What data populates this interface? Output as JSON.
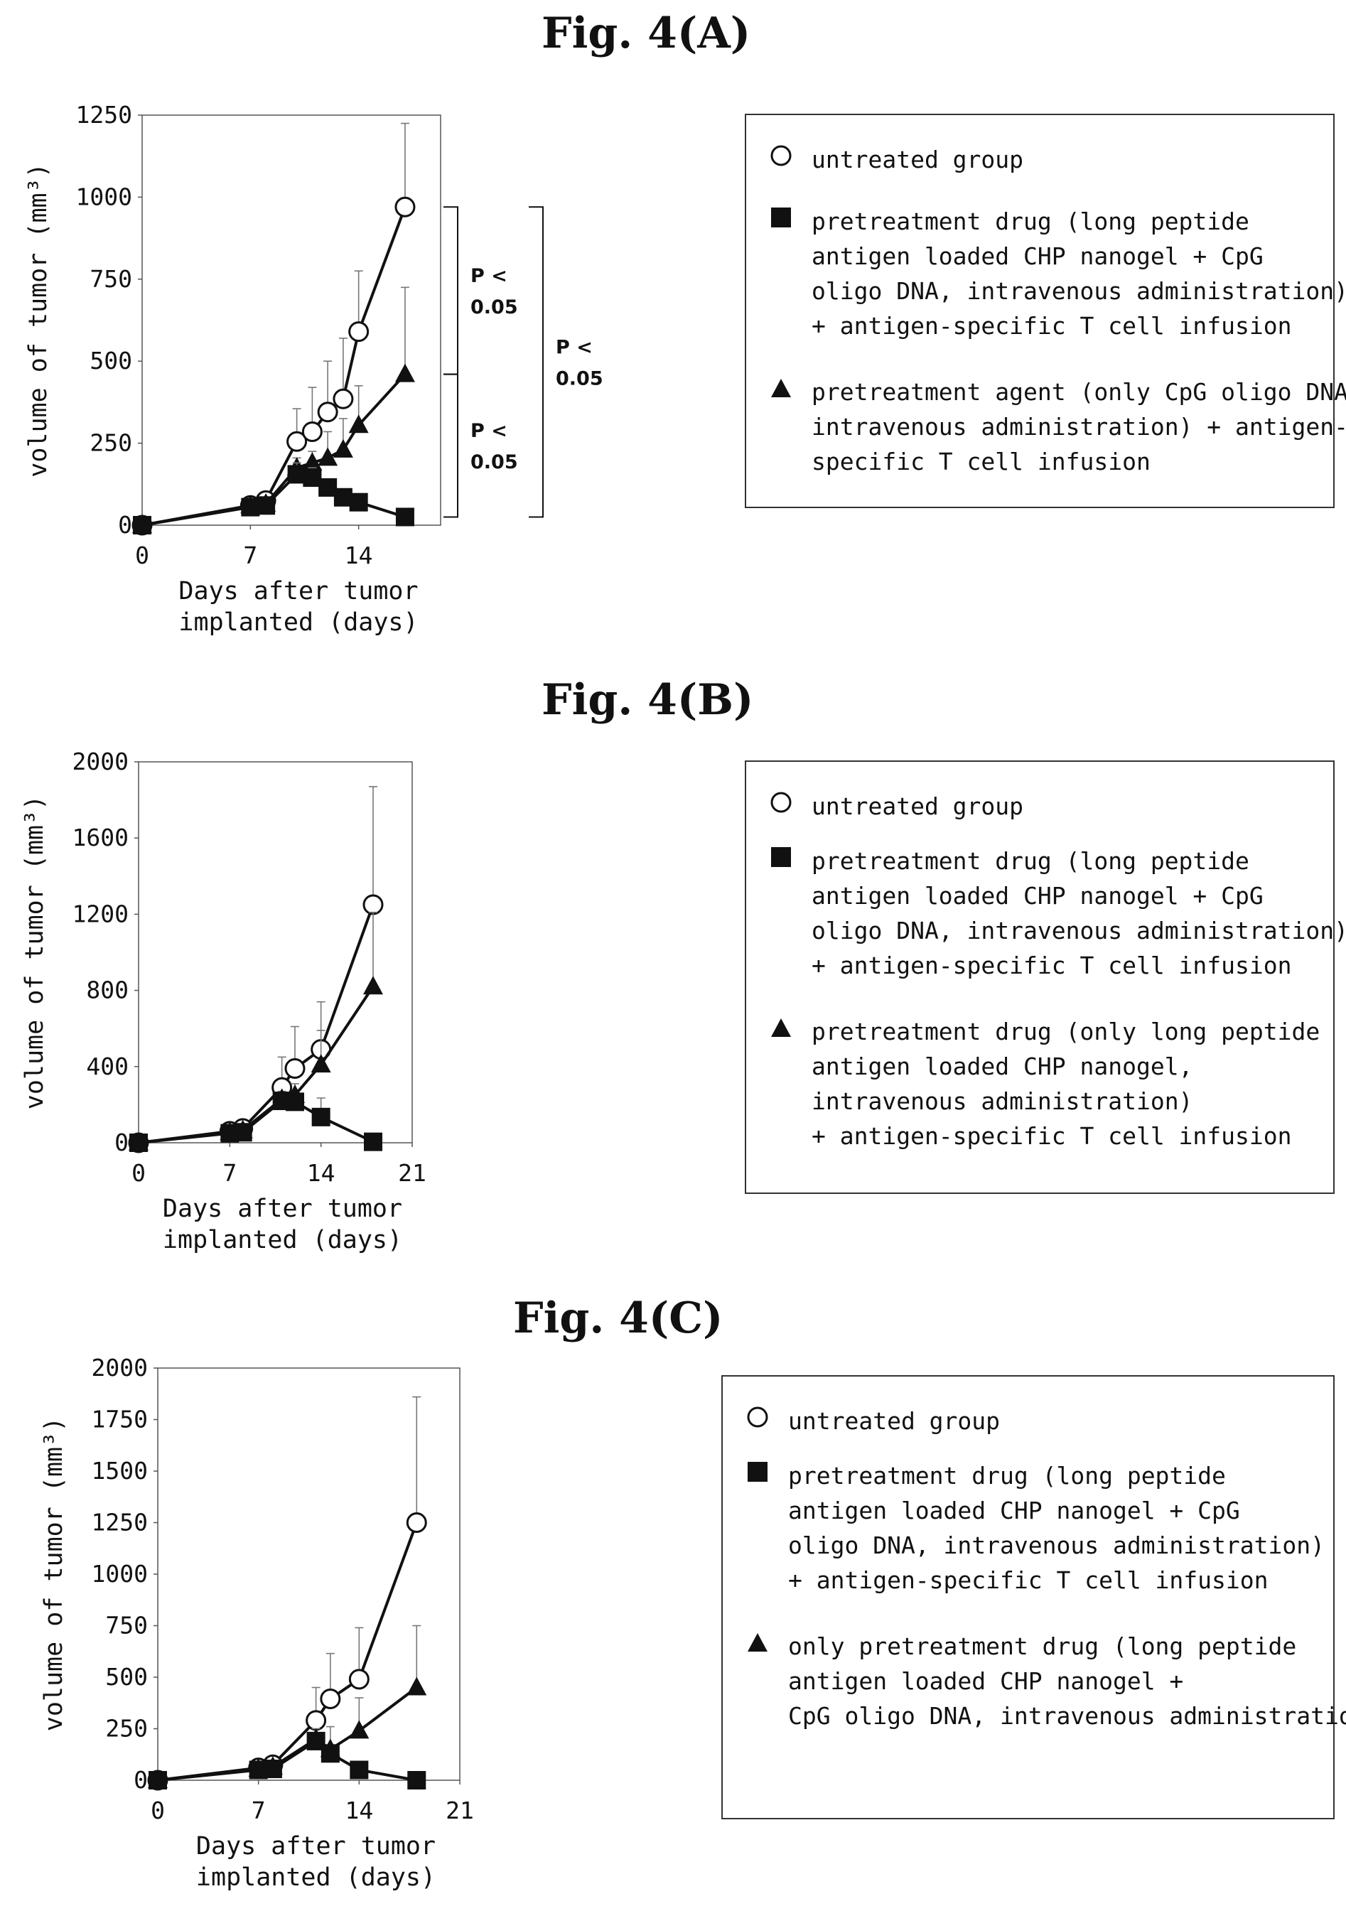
{
  "panels": [
    {
      "title": "Fig. 4(A)",
      "chart_data": {
        "type": "line",
        "xlabel": "Days after tumor\nimplanted (days)",
        "ylabel": "volume of tumor (mm³)",
        "xlim": [
          0,
          19.3
        ],
        "ylim": [
          0,
          1250
        ],
        "xticks": [
          0,
          7,
          14
        ],
        "yticks": [
          0,
          250,
          500,
          750,
          1000,
          1250
        ],
        "series": [
          {
            "marker": "circle",
            "x": [
              0,
              7,
              8,
              10,
              11,
              12,
              13,
              14,
              17
            ],
            "y": [
              0,
              60,
              75,
              255,
              285,
              345,
              385,
              590,
              970
            ],
            "err": [
              0,
              20,
              25,
              100,
              135,
              155,
              185,
              185,
              255
            ]
          },
          {
            "marker": "triangle",
            "x": [
              0,
              7,
              8,
              10,
              11,
              12,
              13,
              14,
              17
            ],
            "y": [
              0,
              60,
              65,
              175,
              190,
              205,
              230,
              305,
              460
            ],
            "err": [
              0,
              15,
              20,
              30,
              35,
              80,
              95,
              120,
              265
            ]
          },
          {
            "marker": "square",
            "x": [
              0,
              7,
              8,
              10,
              11,
              12,
              13,
              14,
              17
            ],
            "y": [
              0,
              55,
              60,
              155,
              145,
              115,
              85,
              70,
              25
            ],
            "err": [
              0,
              10,
              15,
              35,
              30,
              25,
              20,
              15,
              10
            ]
          }
        ],
        "annotations": [
          {
            "text": [
              "P <",
              "0.05"
            ],
            "from": 970,
            "to": 460,
            "xoff": 24
          },
          {
            "text": [
              "P <",
              "0.05"
            ],
            "from": 460,
            "to": 25,
            "xoff": 24
          },
          {
            "text": [
              "P <",
              "0.05"
            ],
            "from": 970,
            "to": 25,
            "xoff": 144
          }
        ]
      },
      "legend": [
        {
          "marker": "circle",
          "text": "untreated group"
        },
        {
          "marker": "square",
          "text": "pretreatment drug (long peptide\nantigen loaded CHP nanogel + CpG\noligo DNA, intravenous administration)\n+ antigen-specific T cell infusion"
        },
        {
          "marker": "triangle",
          "text": "pretreatment agent (only CpG oligo DNA,\nintravenous administration) + antigen-\nspecific T cell infusion"
        }
      ]
    },
    {
      "title": "Fig. 4(B)",
      "chart_data": {
        "type": "line",
        "xlabel": "Days after tumor\nimplanted (days)",
        "ylabel": "volume of tumor (mm³)",
        "xlim": [
          0,
          21
        ],
        "ylim": [
          0,
          2000
        ],
        "xticks": [
          0,
          7,
          14,
          21
        ],
        "yticks": [
          0,
          400,
          800,
          1200,
          1600,
          2000
        ],
        "series": [
          {
            "marker": "circle",
            "x": [
              0,
              7,
              8,
              11,
              12,
              14,
              18
            ],
            "y": [
              0,
              60,
              75,
              290,
              390,
              490,
              1250
            ],
            "err": [
              0,
              15,
              20,
              160,
              220,
              250,
              620
            ]
          },
          {
            "marker": "triangle",
            "x": [
              0,
              7,
              8,
              11,
              12,
              14,
              18
            ],
            "y": [
              0,
              55,
              65,
              230,
              250,
              410,
              820
            ],
            "err": [
              0,
              10,
              15,
              40,
              60,
              180,
              390
            ]
          },
          {
            "marker": "square",
            "x": [
              0,
              7,
              8,
              11,
              12,
              14,
              18
            ],
            "y": [
              0,
              50,
              55,
              220,
              215,
              135,
              5
            ],
            "err": [
              0,
              10,
              10,
              30,
              30,
              100,
              0
            ]
          }
        ],
        "annotations": []
      },
      "legend": [
        {
          "marker": "circle",
          "text": "untreated group"
        },
        {
          "marker": "square",
          "text": "pretreatment drug (long peptide\nantigen loaded CHP nanogel + CpG\noligo DNA, intravenous administration)\n+ antigen-specific T cell infusion"
        },
        {
          "marker": "triangle",
          "text": "pretreatment drug (only long peptide\nantigen loaded CHP nanogel,\nintravenous administration)\n+ antigen-specific T cell infusion"
        }
      ]
    },
    {
      "title": "Fig. 4(C)",
      "chart_data": {
        "type": "line",
        "xlabel": "Days after tumor\nimplanted (days)",
        "ylabel": "volume of tumor (mm³)",
        "xlim": [
          0,
          21
        ],
        "ylim": [
          0,
          2000
        ],
        "xticks": [
          0,
          7,
          14,
          21
        ],
        "yticks": [
          0,
          250,
          500,
          750,
          1000,
          1250,
          1500,
          1750,
          2000
        ],
        "series": [
          {
            "marker": "circle",
            "x": [
              0,
              7,
              8,
              11,
              12,
              14,
              18
            ],
            "y": [
              0,
              60,
              75,
              290,
              395,
              490,
              1250
            ],
            "err": [
              0,
              15,
              20,
              160,
              220,
              250,
              610
            ]
          },
          {
            "marker": "triangle",
            "x": [
              0,
              7,
              8,
              11,
              12,
              14,
              18
            ],
            "y": [
              0,
              55,
              65,
              200,
              150,
              240,
              450
            ],
            "err": [
              0,
              10,
              15,
              50,
              110,
              160,
              300
            ]
          },
          {
            "marker": "square",
            "x": [
              0,
              7,
              8,
              11,
              12,
              14,
              18
            ],
            "y": [
              0,
              50,
              55,
              190,
              130,
              50,
              0
            ],
            "err": [
              0,
              10,
              10,
              40,
              30,
              20,
              0
            ]
          }
        ],
        "annotations": []
      },
      "legend": [
        {
          "marker": "circle",
          "text": "untreated group"
        },
        {
          "marker": "square",
          "text": "pretreatment drug (long peptide\nantigen loaded CHP nanogel + CpG\noligo DNA, intravenous administration)\n+ antigen-specific T cell infusion"
        },
        {
          "marker": "triangle",
          "text": "only pretreatment drug (long peptide\nantigen loaded CHP nanogel +\nCpG oligo DNA, intravenous administration)"
        }
      ]
    }
  ]
}
